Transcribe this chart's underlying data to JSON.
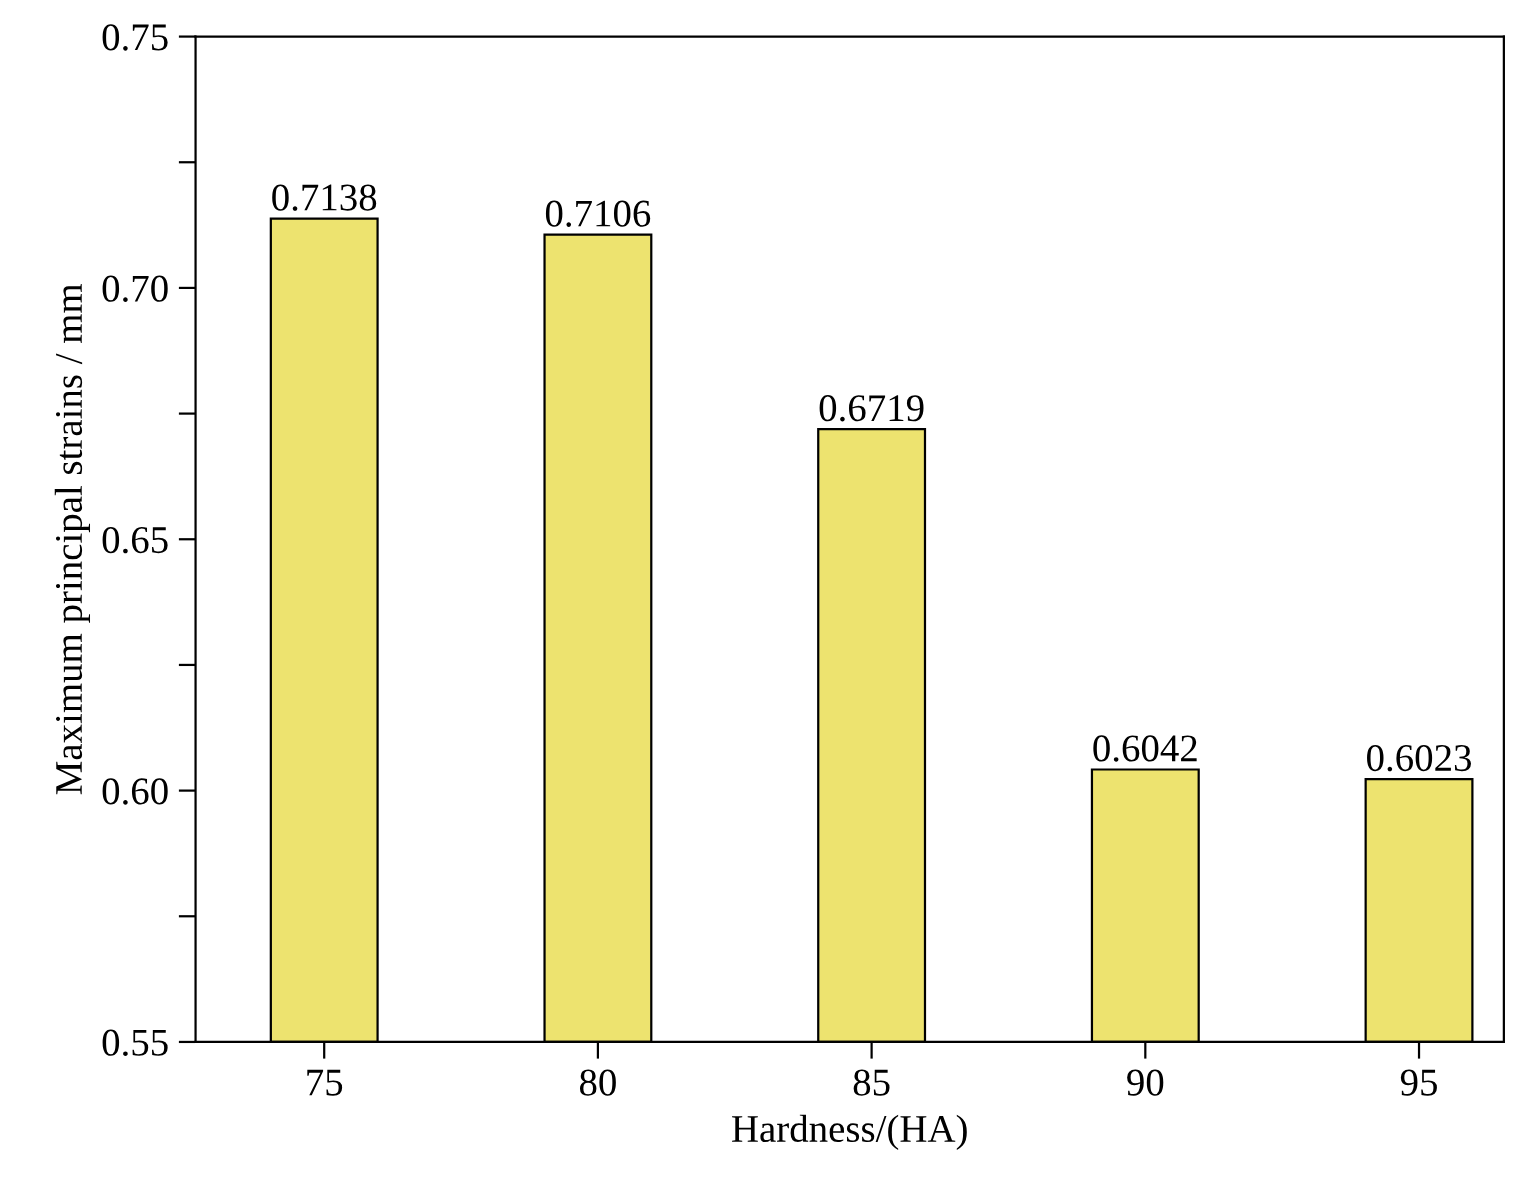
{
  "chart_data": {
    "type": "bar",
    "xlabel": "Hardness/(HA)",
    "ylabel": "Maximum principal strains / mm",
    "categories": [
      "75",
      "80",
      "85",
      "90",
      "95"
    ],
    "values": [
      0.7138,
      0.7106,
      0.6719,
      0.6042,
      0.6023
    ],
    "color": "#ede36f",
    "ylim": [
      0.55,
      0.75
    ],
    "yticks": [
      {
        "value": 0.55,
        "label": "0.55"
      },
      {
        "value": 0.575,
        "label": null
      },
      {
        "value": 0.6,
        "label": "0.60"
      },
      {
        "value": 0.625,
        "label": null
      },
      {
        "value": 0.65,
        "label": "0.65"
      },
      {
        "value": 0.675,
        "label": null
      },
      {
        "value": 0.7,
        "label": "0.70"
      },
      {
        "value": 0.725,
        "label": null
      },
      {
        "value": 0.75,
        "label": "0.75"
      }
    ],
    "data_labels": true,
    "grid": false
  }
}
